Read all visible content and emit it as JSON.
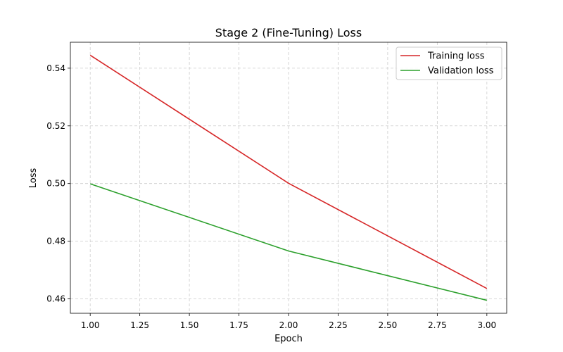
{
  "chart_data": {
    "type": "line",
    "title": "Stage 2 (Fine-Tuning) Loss",
    "xlabel": "Epoch",
    "ylabel": "Loss",
    "x": [
      1,
      2,
      3
    ],
    "xlim": [
      0.9,
      3.1
    ],
    "ylim": [
      0.455,
      0.549
    ],
    "xticks": [
      1.0,
      1.25,
      1.5,
      1.75,
      2.0,
      2.25,
      2.5,
      2.75,
      3.0
    ],
    "xtick_labels": [
      "1.00",
      "1.25",
      "1.50",
      "1.75",
      "2.00",
      "2.25",
      "2.50",
      "2.75",
      "3.00"
    ],
    "yticks": [
      0.46,
      0.48,
      0.5,
      0.52,
      0.54
    ],
    "ytick_labels": [
      "0.46",
      "0.48",
      "0.50",
      "0.52",
      "0.54"
    ],
    "grid": true,
    "legend_position": "top-right",
    "series": [
      {
        "name": "Training loss",
        "color": "#d62728",
        "values": [
          0.5445,
          0.5001,
          0.4636
        ]
      },
      {
        "name": "Validation loss",
        "color": "#2ca02c",
        "values": [
          0.4999,
          0.4766,
          0.4595
        ]
      }
    ]
  }
}
